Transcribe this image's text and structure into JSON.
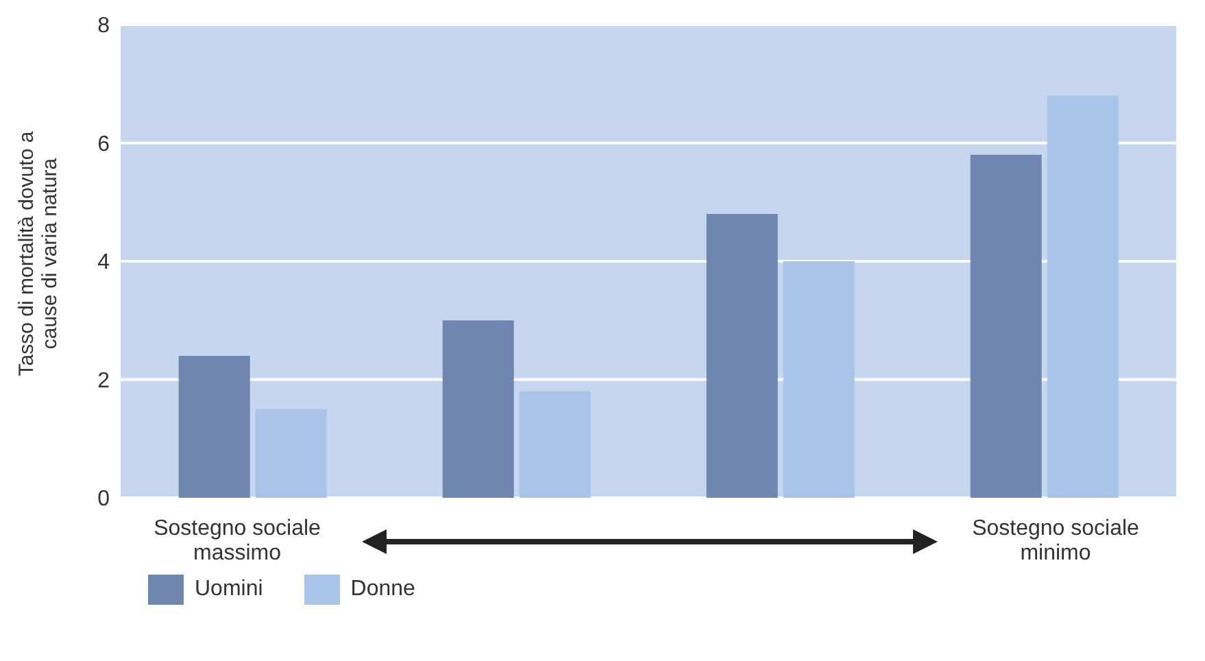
{
  "chart_data": {
    "type": "bar",
    "ylabel": "Tasso di mortalità dovuto a cause di varia natura",
    "categories": [
      null,
      null,
      null,
      null
    ],
    "series": [
      {
        "name": "Uomini",
        "color": "#6f86b0",
        "values": [
          2.4,
          3.0,
          4.8,
          5.8
        ]
      },
      {
        "name": "Donne",
        "color": "#a9c4e8",
        "values": [
          1.5,
          1.8,
          4.0,
          6.8
        ]
      }
    ],
    "ylim": [
      0,
      8
    ],
    "yticks": [
      0,
      2,
      4,
      6,
      8
    ],
    "grid": "y",
    "legend": "bottom left",
    "annotations": [
      "Sostegno sociale massimo",
      "Sostegno sociale minimo"
    ]
  }
}
